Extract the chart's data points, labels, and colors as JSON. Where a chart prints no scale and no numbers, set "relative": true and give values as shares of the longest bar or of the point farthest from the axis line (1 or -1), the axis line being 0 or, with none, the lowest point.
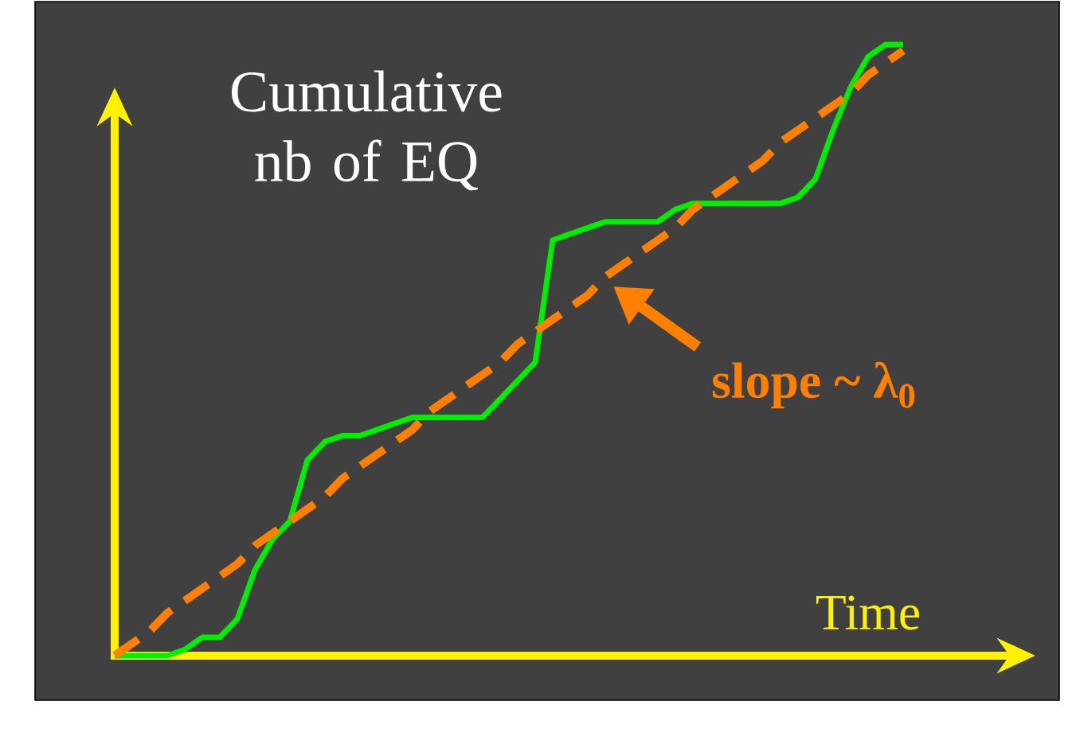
{
  "chart_data": {
    "type": "line",
    "relative": true,
    "ylabel": "Cumulative nb of EQ",
    "xlabel": "Time",
    "annotations": [
      "slope ~ λ$_{0}$"
    ],
    "categories": [
      null,
      null,
      null,
      null,
      null,
      null,
      null,
      null,
      null,
      null,
      null,
      null,
      null,
      null,
      null,
      null,
      null,
      null,
      null,
      null,
      null,
      null,
      null,
      null,
      null,
      null,
      null,
      null,
      null,
      null,
      null,
      null,
      null,
      null,
      null,
      null,
      null,
      null,
      null,
      null,
      null,
      null,
      null,
      null,
      null,
      null
    ],
    "series": [
      {
        "color": "#00ee00",
        "values": [
          0,
          0,
          0,
          0,
          0.01,
          0.03,
          0.03,
          0.06,
          0.14,
          0.19,
          0.22,
          0.32,
          0.35,
          0.36,
          0.36,
          0.37,
          0.38,
          0.39,
          0.39,
          0.39,
          0.39,
          0.39,
          0.42,
          0.45,
          0.48,
          0.68,
          0.69,
          0.7,
          0.71,
          0.71,
          0.71,
          0.71,
          0.73,
          0.74,
          0.74,
          0.74,
          0.74,
          0.74,
          0.74,
          0.75,
          0.78,
          0.86,
          0.93,
          0.98,
          1,
          1
        ]
      },
      {
        "color": "#ff7f00",
        "line_style": "dashed",
        "values": [
          0,
          0.02,
          0.04,
          0.07,
          0.09,
          0.11,
          0.13,
          0.15,
          0.18,
          0.2,
          0.22,
          0.24,
          0.26,
          0.29,
          0.31,
          0.33,
          0.35,
          0.37,
          0.4,
          0.42,
          0.44,
          0.46,
          0.48,
          0.51,
          0.53,
          0.55,
          0.57,
          0.59,
          0.62,
          0.64,
          0.66,
          0.68,
          0.7,
          0.73,
          0.75,
          0.77,
          0.79,
          0.81,
          0.84,
          0.86,
          0.88,
          0.9,
          0.92,
          0.95,
          0.97,
          0.99
        ]
      }
    ]
  }
}
